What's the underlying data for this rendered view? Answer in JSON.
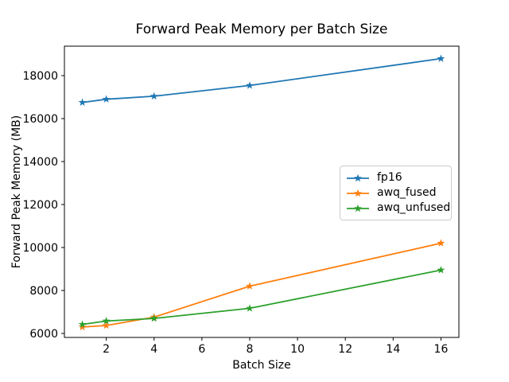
{
  "chart_data": {
    "type": "line",
    "title": "Forward Peak Memory per Batch Size",
    "xlabel": "Batch Size",
    "ylabel": "Forward Peak Memory (MB)",
    "x": [
      1,
      2,
      4,
      8,
      16
    ],
    "series": [
      {
        "name": "fp16",
        "color": "#1f77b4",
        "marker": "star",
        "values": [
          16750,
          16900,
          17040,
          17540,
          18790
        ]
      },
      {
        "name": "awq_fused",
        "color": "#ff7f0e",
        "marker": "star",
        "values": [
          6300,
          6370,
          6760,
          8200,
          10200
        ]
      },
      {
        "name": "awq_unfused",
        "color": "#2ca02c",
        "marker": "star",
        "values": [
          6420,
          6580,
          6700,
          7170,
          8950
        ]
      }
    ],
    "xticks": [
      2,
      4,
      6,
      8,
      10,
      12,
      14,
      16
    ],
    "yticks": [
      6000,
      8000,
      10000,
      12000,
      14000,
      16000,
      18000
    ],
    "xlim": [
      0.25,
      16.75
    ],
    "ylim": [
      5815,
      19370
    ],
    "grid": false,
    "legend_position": "center right",
    "axis_color": "#000000",
    "background_color": "#ffffff"
  }
}
